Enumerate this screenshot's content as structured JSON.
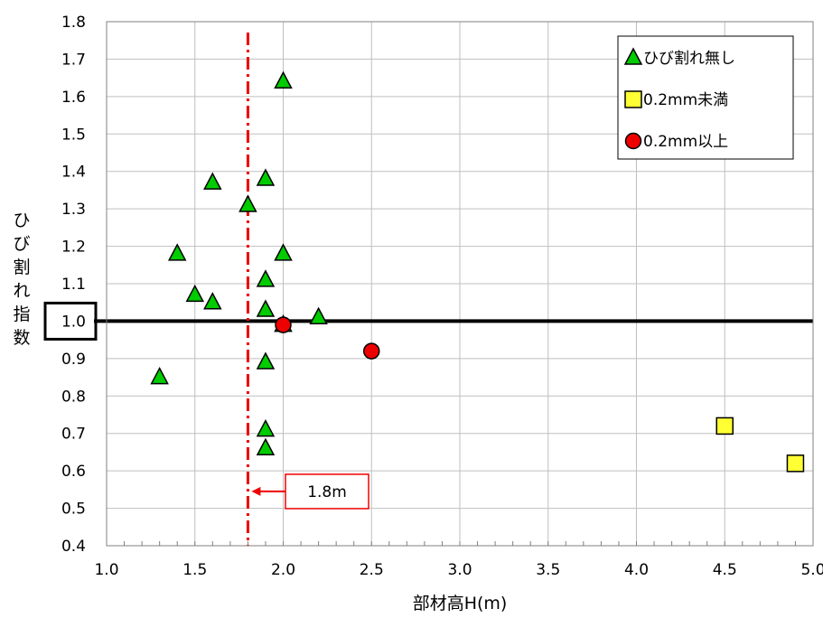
{
  "chart_data": {
    "type": "scatter",
    "xlabel": "部材高H(m)",
    "ylabel": "ひび割れ指数",
    "xlim": [
      1.0,
      5.0
    ],
    "ylim": [
      0.4,
      1.8
    ],
    "xticks": [
      1.0,
      1.5,
      2.0,
      2.5,
      3.0,
      3.5,
      4.0,
      4.5,
      5.0
    ],
    "xtick_labels": [
      "1.0",
      "1.5",
      "2.0",
      "2.5",
      "3.0",
      "3.5",
      "4.0",
      "4.5",
      "5.0"
    ],
    "yticks": [
      0.4,
      0.5,
      0.6,
      0.7,
      0.8,
      0.9,
      1.0,
      1.1,
      1.2,
      1.3,
      1.4,
      1.5,
      1.6,
      1.7,
      1.8
    ],
    "ytick_labels": [
      "0.4",
      "0.5",
      "0.6",
      "0.7",
      "0.8",
      "0.9",
      "1.0",
      "1.1",
      "1.2",
      "1.3",
      "1.4",
      "1.5",
      "1.6",
      "1.7",
      "1.8"
    ],
    "highlighted_ytick": "1.0",
    "grid": true,
    "legend_position": "top-right",
    "series": [
      {
        "name": "ひび割れ無し",
        "marker": "triangle",
        "color": "#00cc00",
        "points": [
          [
            2.0,
            1.64
          ],
          [
            1.6,
            1.37
          ],
          [
            1.9,
            1.38
          ],
          [
            1.8,
            1.31
          ],
          [
            1.4,
            1.18
          ],
          [
            2.0,
            1.18
          ],
          [
            1.9,
            1.11
          ],
          [
            1.5,
            1.07
          ],
          [
            1.6,
            1.05
          ],
          [
            1.9,
            1.03
          ],
          [
            2.2,
            1.01
          ],
          [
            2.0,
            0.99
          ],
          [
            1.3,
            0.85
          ],
          [
            1.9,
            0.89
          ],
          [
            1.9,
            0.71
          ],
          [
            1.9,
            0.66
          ]
        ]
      },
      {
        "name": "0.2mm未満",
        "marker": "square",
        "color": "#ffff33",
        "points": [
          [
            4.5,
            0.72
          ],
          [
            4.9,
            0.62
          ]
        ]
      },
      {
        "name": "0.2mm以上",
        "marker": "circle",
        "color": "#ee0000",
        "points": [
          [
            2.0,
            0.99
          ],
          [
            2.5,
            0.92
          ]
        ]
      }
    ],
    "reference_lines": [
      {
        "orientation": "horizontal",
        "value": 1.0,
        "color": "#000000",
        "style": "solid"
      },
      {
        "orientation": "vertical",
        "value": 1.8,
        "color": "#ee0000",
        "style": "dash-dot"
      }
    ],
    "annotations": [
      {
        "text": "1.8m",
        "x": 1.8,
        "y": 0.545,
        "color": "#ee0000"
      }
    ]
  }
}
